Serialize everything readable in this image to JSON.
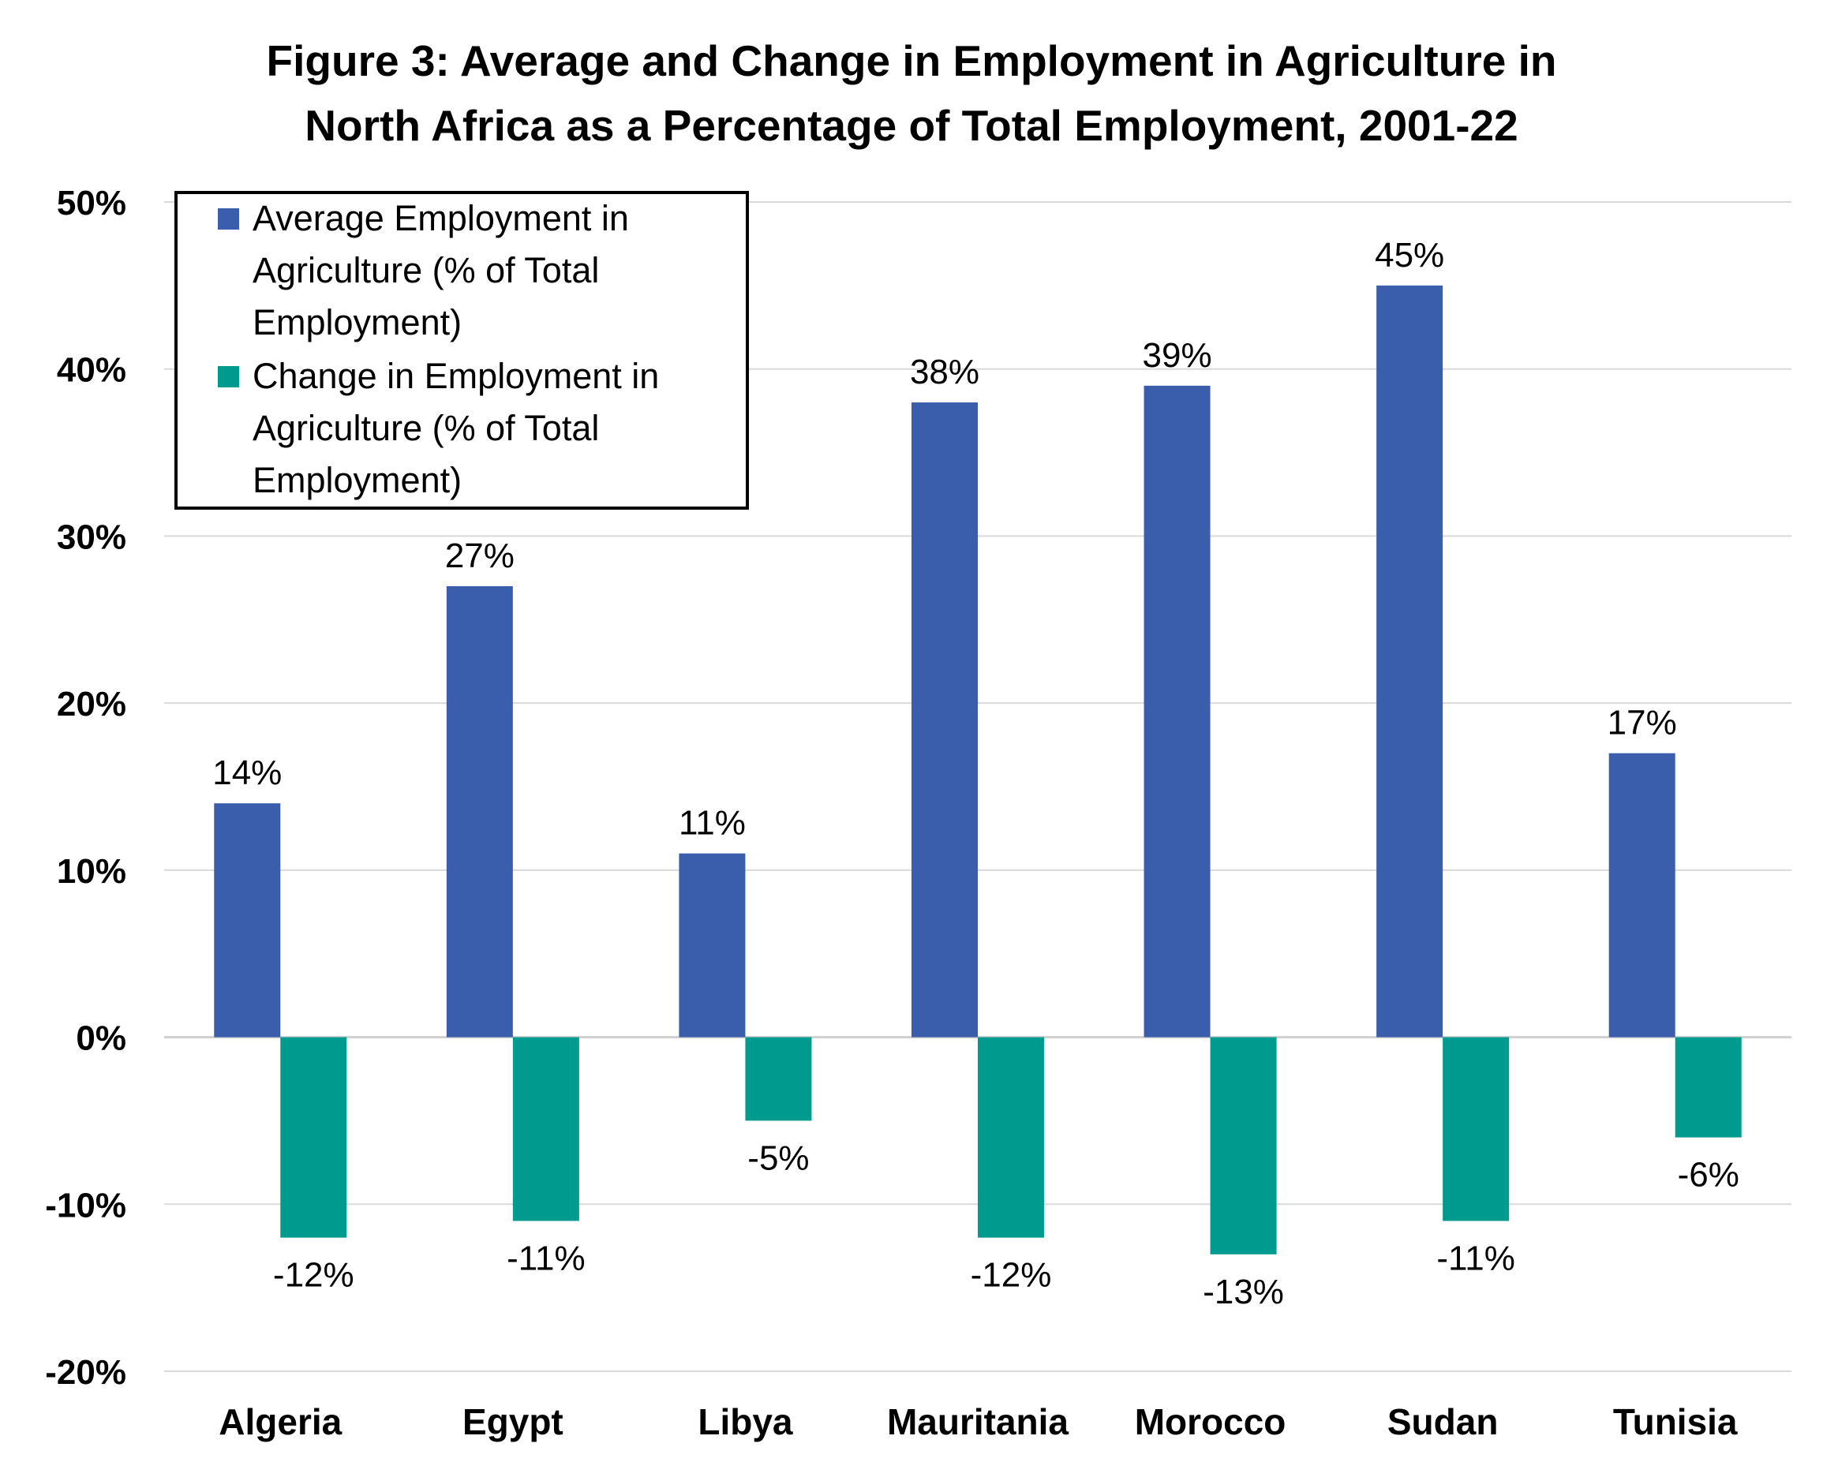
{
  "chart_data": {
    "type": "bar",
    "title": [
      "Figure 3: Average and Change in Employment in Agriculture in",
      "North Africa as a Percentage of Total Employment, 2001-22"
    ],
    "categories": [
      "Algeria",
      "Egypt",
      "Libya",
      "Mauritania",
      "Morocco",
      "Sudan",
      "Tunisia"
    ],
    "series": [
      {
        "name": [
          "Average Employment in",
          "Agriculture (% of Total",
          "Employment)"
        ],
        "color": "#3a5eab",
        "values": [
          14,
          27,
          11,
          38,
          39,
          45,
          17
        ],
        "labels": [
          "14%",
          "27%",
          "11%",
          "38%",
          "39%",
          "45%",
          "17%"
        ]
      },
      {
        "name": [
          "Change in Employment in",
          "Agriculture (% of Total",
          "Employment)"
        ],
        "color": "#009b8f",
        "values": [
          -12,
          -11,
          -5,
          -12,
          -13,
          -11,
          -6
        ],
        "labels": [
          "-12%",
          "-11%",
          "-5%",
          "-12%",
          "-13%",
          "-11%",
          "-6%"
        ]
      }
    ],
    "yticks": [
      "50%",
      "40%",
      "30%",
      "20%",
      "10%",
      "0%",
      "-10%",
      "-20%"
    ],
    "ytick_values": [
      50,
      40,
      30,
      20,
      10,
      0,
      -10,
      -20
    ],
    "ylim": [
      -20,
      50
    ],
    "grid": true,
    "legend_position": "top-left"
  }
}
